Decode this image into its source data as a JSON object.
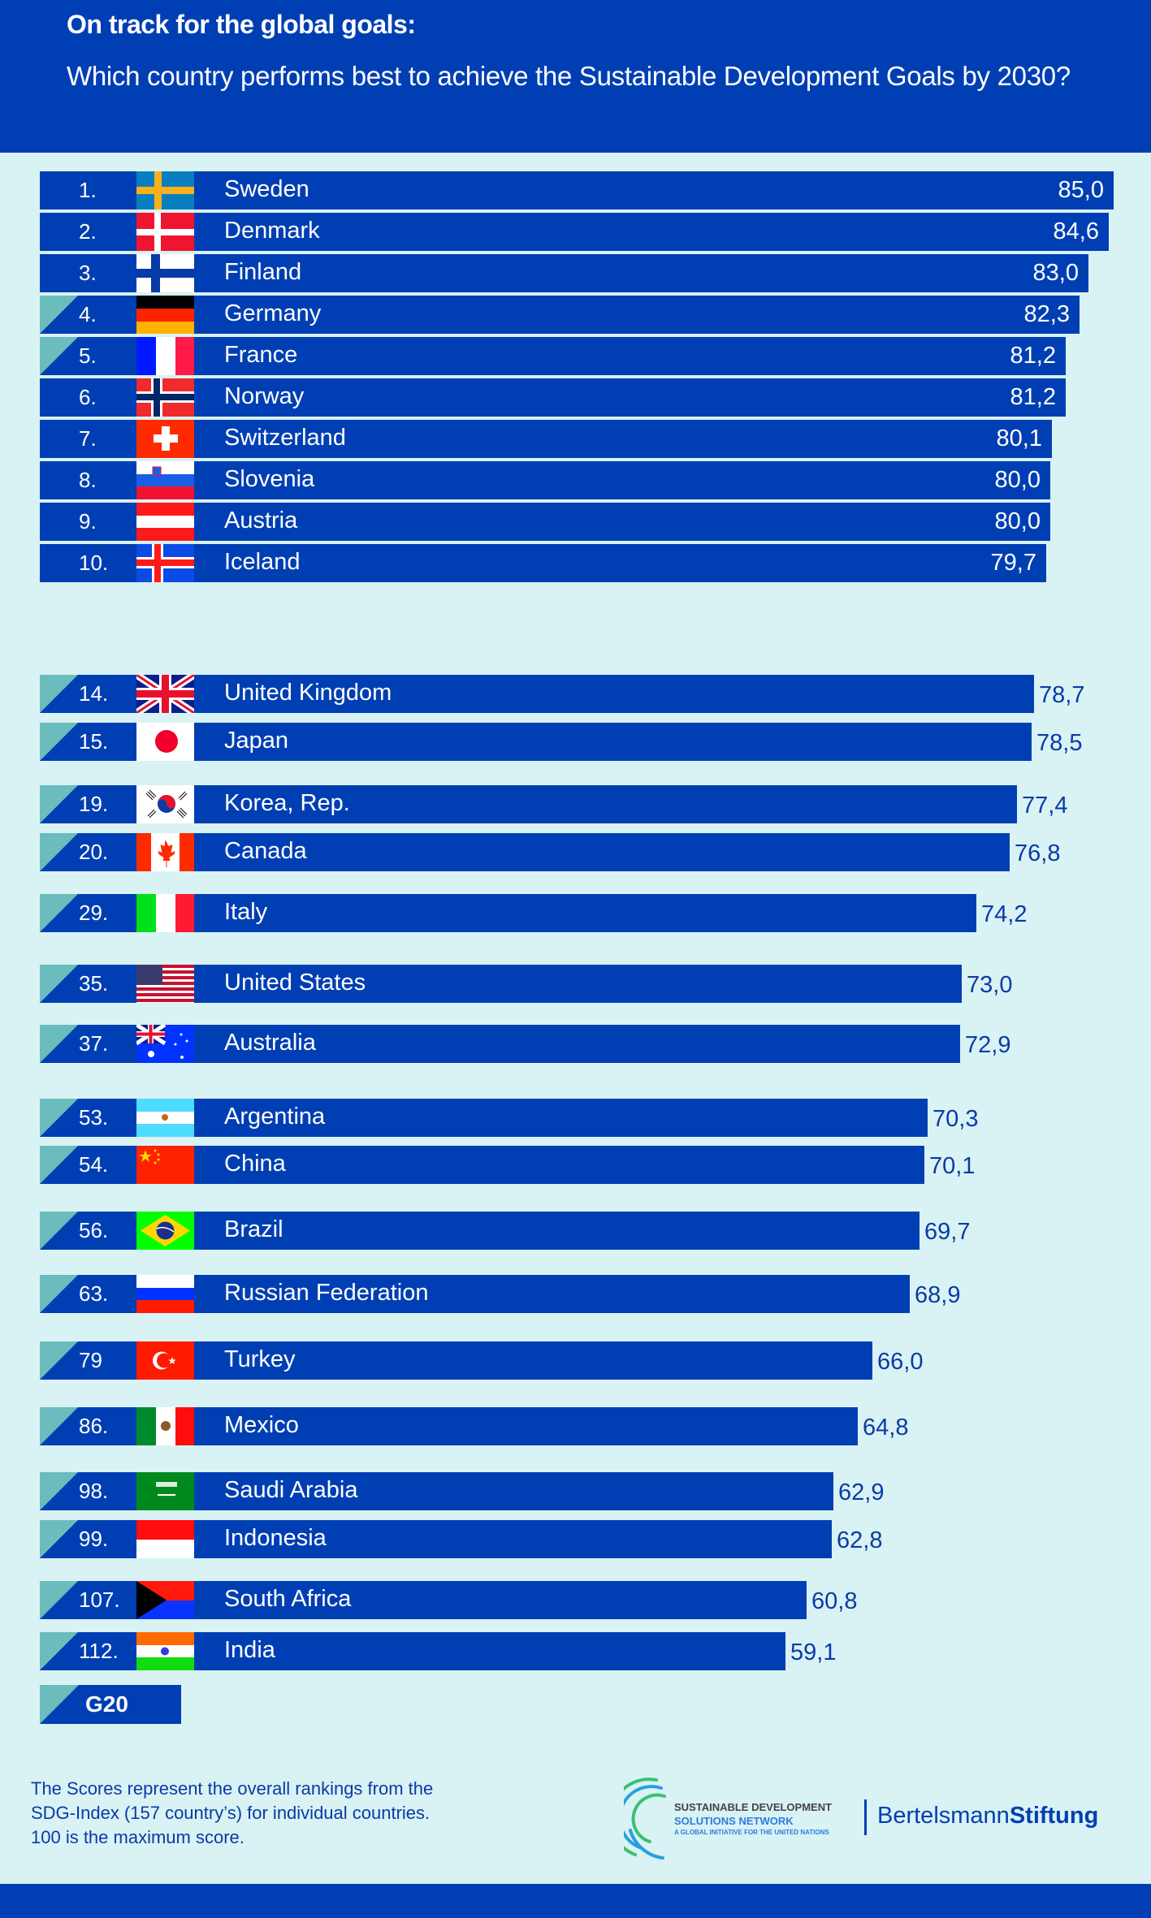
{
  "header": {
    "title": "On track for the global goals:",
    "subtitle": "Which country performs best to achieve the Sustainable Development Goals by 2030?"
  },
  "colors": {
    "bar": "#003fb3",
    "background": "#d9f2f3",
    "g20_marker": "#6bbcbc",
    "value_text_outside": "#0a3aa8"
  },
  "chart_data": {
    "type": "bar",
    "orientation": "horizontal",
    "title": "On track for the global goals:",
    "subtitle": "Which country performs best to achieve the Sustainable Development Goals by 2030?",
    "xlabel": "",
    "ylabel": "",
    "value_max": 100,
    "decimal_separator": ",",
    "legend": [
      {
        "marker": "teal corner triangle",
        "label": "G20"
      }
    ],
    "rows": [
      {
        "rank": "1.",
        "country": "Sweden",
        "flag": "sweden-flag",
        "value": 85.0,
        "label": "85,0",
        "g20": false
      },
      {
        "rank": "2.",
        "country": "Denmark",
        "flag": "denmark-flag",
        "value": 84.6,
        "label": "84,6",
        "g20": false
      },
      {
        "rank": "3.",
        "country": "Finland",
        "flag": "finland-flag",
        "value": 83.0,
        "label": "83,0",
        "g20": false
      },
      {
        "rank": "4.",
        "country": "Germany",
        "flag": "germany-flag",
        "value": 82.3,
        "label": "82,3",
        "g20": true
      },
      {
        "rank": "5.",
        "country": "France",
        "flag": "france-flag",
        "value": 81.2,
        "label": "81,2",
        "g20": true
      },
      {
        "rank": "6.",
        "country": "Norway",
        "flag": "norway-flag",
        "value": 81.2,
        "label": "81,2",
        "g20": false
      },
      {
        "rank": "7.",
        "country": "Switzerland",
        "flag": "switzerland-flag",
        "value": 80.1,
        "label": "80,1",
        "g20": false
      },
      {
        "rank": "8.",
        "country": "Slovenia",
        "flag": "slovenia-flag",
        "value": 80.0,
        "label": "80,0",
        "g20": false
      },
      {
        "rank": "9.",
        "country": "Austria",
        "flag": "austria-flag",
        "value": 80.0,
        "label": "80,0",
        "g20": false
      },
      {
        "rank": "10.",
        "country": "Iceland",
        "flag": "iceland-flag",
        "value": 79.7,
        "label": "79,7",
        "g20": false
      },
      {
        "rank": "14.",
        "country": "United Kingdom",
        "flag": "uk-flag",
        "value": 78.7,
        "label": "78,7",
        "g20": true
      },
      {
        "rank": "15.",
        "country": "Japan",
        "flag": "japan-flag",
        "value": 78.5,
        "label": "78,5",
        "g20": true
      },
      {
        "rank": "19.",
        "country": "Korea, Rep.",
        "flag": "korea-flag",
        "value": 77.4,
        "label": "77,4",
        "g20": true
      },
      {
        "rank": "20.",
        "country": "Canada",
        "flag": "canada-flag",
        "value": 76.8,
        "label": "76,8",
        "g20": true
      },
      {
        "rank": "29.",
        "country": "Italy",
        "flag": "italy-flag",
        "value": 74.2,
        "label": "74,2",
        "g20": true
      },
      {
        "rank": "35.",
        "country": "United States",
        "flag": "usa-flag",
        "value": 73.0,
        "label": "73,0",
        "g20": true
      },
      {
        "rank": "37.",
        "country": "Australia",
        "flag": "australia-flag",
        "value": 72.9,
        "label": "72,9",
        "g20": true
      },
      {
        "rank": "53.",
        "country": "Argentina",
        "flag": "argentina-flag",
        "value": 70.3,
        "label": "70,3",
        "g20": true
      },
      {
        "rank": "54.",
        "country": "China",
        "flag": "china-flag",
        "value": 70.1,
        "label": "70,1",
        "g20": true
      },
      {
        "rank": "56.",
        "country": "Brazil",
        "flag": "brazil-flag",
        "value": 69.7,
        "label": "69,7",
        "g20": true
      },
      {
        "rank": "63.",
        "country": "Russian Federation",
        "flag": "russia-flag",
        "value": 68.9,
        "label": "68,9",
        "g20": true
      },
      {
        "rank": "79",
        "country": "Turkey",
        "flag": "turkey-flag",
        "value": 66.0,
        "label": "66,0",
        "g20": true
      },
      {
        "rank": "86.",
        "country": "Mexico",
        "flag": "mexico-flag",
        "value": 64.8,
        "label": "64,8",
        "g20": true
      },
      {
        "rank": "98.",
        "country": "Saudi Arabia",
        "flag": "saudi-arabia-flag",
        "value": 62.9,
        "label": "62,9",
        "g20": true
      },
      {
        "rank": "99.",
        "country": "Indonesia",
        "flag": "indonesia-flag",
        "value": 62.8,
        "label": "62,8",
        "g20": true
      },
      {
        "rank": "107.",
        "country": "South Africa",
        "flag": "south-africa-flag",
        "value": 60.8,
        "label": "60,8",
        "g20": true
      },
      {
        "rank": "112.",
        "country": "India",
        "flag": "india-flag",
        "value": 59.1,
        "label": "59,1",
        "g20": true
      }
    ]
  },
  "legend": {
    "g20_label": "G20"
  },
  "footnote": {
    "lines": [
      "The Scores represent the overall rankings from the",
      "SDG-Index (157 country’s) for individual countries.",
      "100 is the maximum score."
    ]
  },
  "logos": {
    "sdsn": {
      "line1": "SUSTAINABLE DEVELOPMENT",
      "line2": "SOLUTIONS NETWORK",
      "line3": "A GLOBAL INITIATIVE FOR THE UNITED NATIONS"
    },
    "bertelsmann": {
      "light": "Bertelsmann",
      "bold": "Stiftung"
    }
  }
}
